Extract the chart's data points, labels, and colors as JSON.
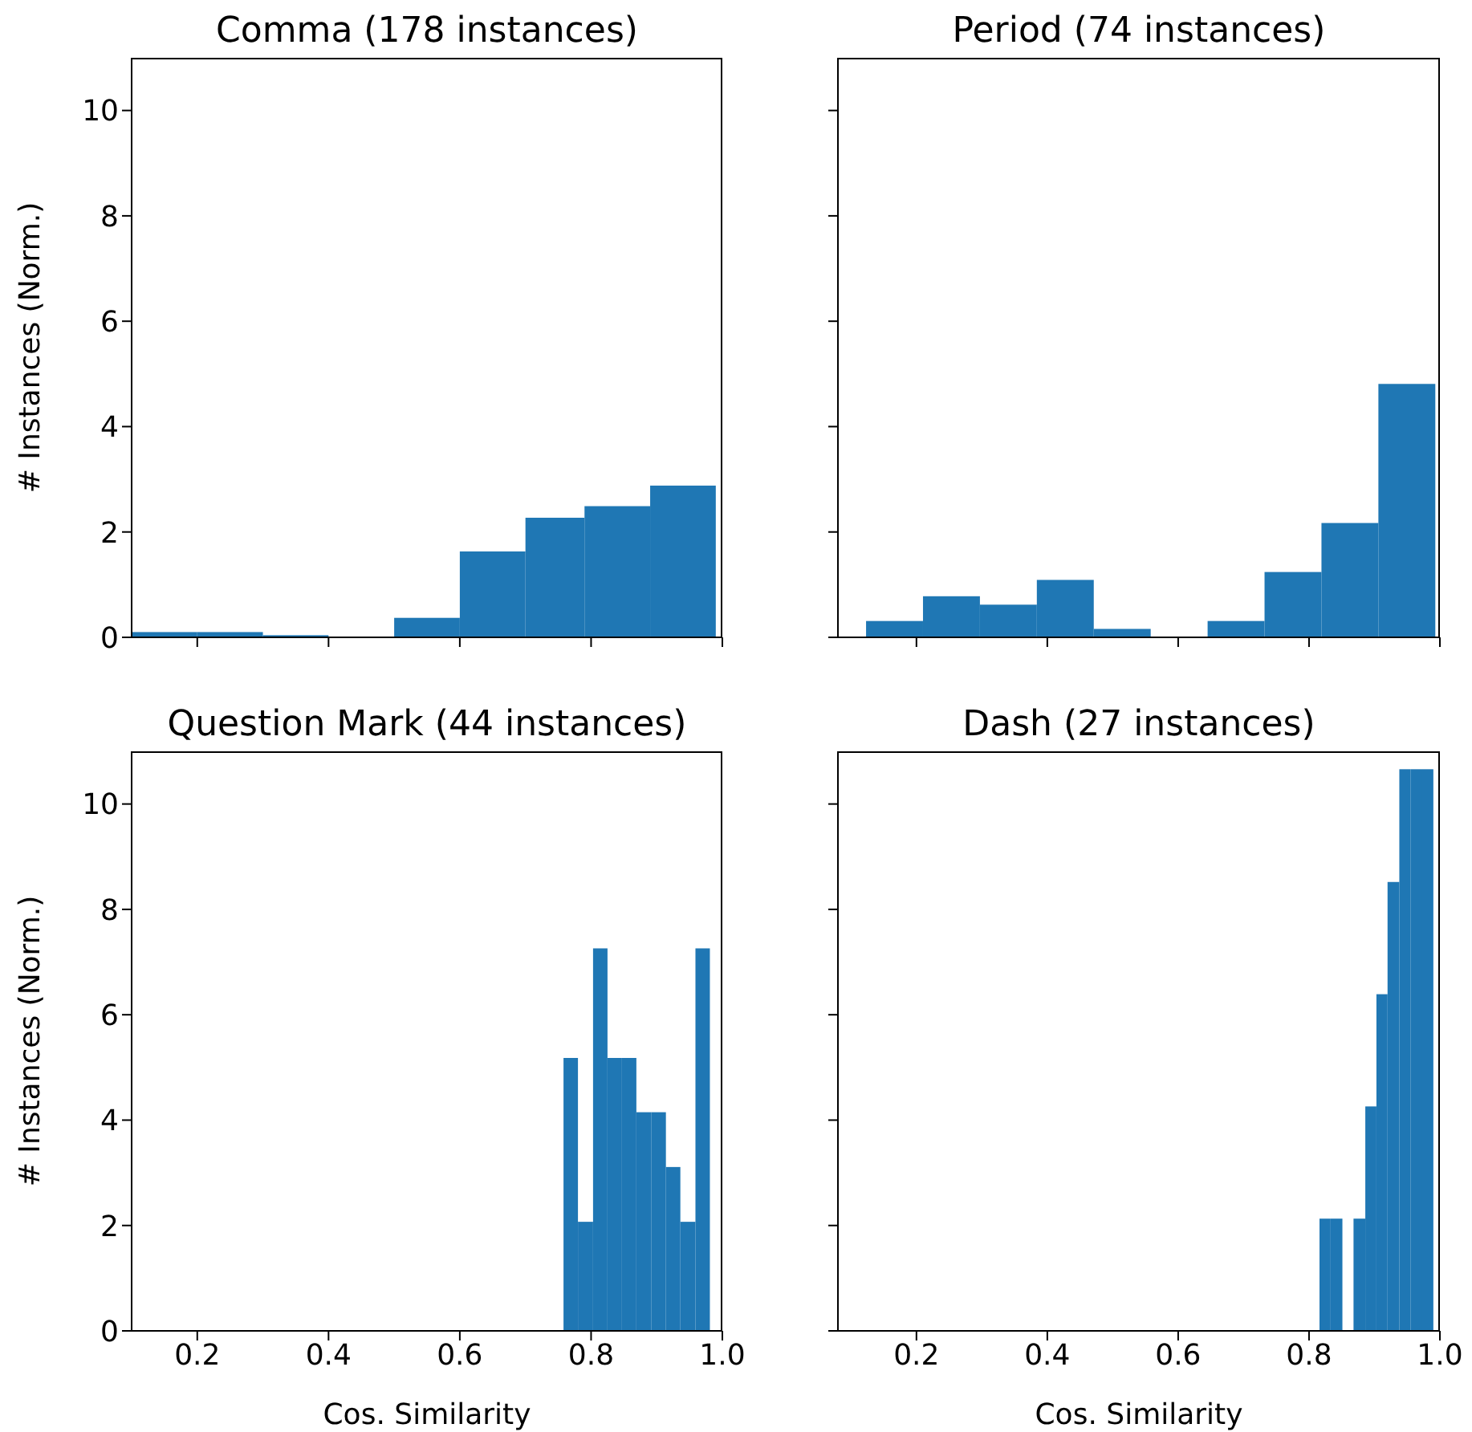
{
  "chart_data": [
    {
      "type": "histogram",
      "title": "Comma (178 instances)",
      "ylabel": "# Instances (Norm.)",
      "bins": [
        0.1,
        0.2,
        0.3,
        0.4,
        0.5,
        0.6,
        0.7,
        0.79,
        0.89,
        0.99
      ],
      "values": [
        0.1,
        0.1,
        0.04,
        0.01,
        0.37,
        1.63,
        2.27,
        2.49,
        2.88
      ],
      "color": "#1f77b4",
      "xlim": [
        0.1,
        1.0
      ],
      "xticks": [
        0.2,
        0.4,
        0.6,
        0.8,
        1.0
      ],
      "ylim": [
        0,
        11
      ],
      "yticks": [
        0,
        2,
        4,
        6,
        8,
        10
      ],
      "tick_labels": "y",
      "grid": false
    },
    {
      "type": "histogram",
      "title": "Period (74 instances)",
      "bins": [
        0.123,
        0.21,
        0.297,
        0.384,
        0.471,
        0.558,
        0.645,
        0.732,
        0.819,
        0.906,
        0.993
      ],
      "values": [
        0.31,
        0.78,
        0.62,
        1.09,
        0.16,
        0,
        0.31,
        1.24,
        2.17,
        4.81
      ],
      "color": "#1f77b4",
      "xlim": [
        0.08,
        1.0
      ],
      "xticks": [
        0.2,
        0.4,
        0.6,
        0.8,
        1.0
      ],
      "ylim": [
        0,
        11
      ],
      "yticks": [
        0,
        2,
        4,
        6,
        8,
        10
      ],
      "tick_labels": false,
      "grid": false
    },
    {
      "type": "histogram",
      "title": "Question Mark (44 instances)",
      "xlabel": "Cos. Similarity",
      "ylabel": "# Instances (Norm.)",
      "bins": [
        0.758,
        0.78,
        0.803,
        0.825,
        0.847,
        0.869,
        0.892,
        0.914,
        0.936,
        0.959,
        0.981
      ],
      "values": [
        5.18,
        2.07,
        7.26,
        5.18,
        5.18,
        4.15,
        4.15,
        3.11,
        2.07,
        7.26
      ],
      "color": "#1f77b4",
      "xlim": [
        0.1,
        1.0
      ],
      "xticks": [
        0.2,
        0.4,
        0.6,
        0.8,
        {
          "value": 1,
          "label": "1.0"
        }
      ],
      "ylim": [
        0,
        11
      ],
      "yticks": [
        0,
        2,
        4,
        6,
        8,
        10
      ],
      "grid": false
    },
    {
      "type": "histogram",
      "title": "Dash (27 instances)",
      "xlabel": "Cos. Similarity",
      "bins": [
        0.816,
        0.833,
        0.851,
        0.868,
        0.886,
        0.903,
        0.92,
        0.938,
        0.955,
        0.973,
        0.99
      ],
      "values": [
        2.13,
        2.13,
        0,
        2.13,
        4.26,
        6.39,
        8.52,
        10.66,
        10.66,
        10.66
      ],
      "color": "#1f77b4",
      "xlim": [
        0.08,
        1.0
      ],
      "xticks": [
        0.2,
        0.4,
        0.6,
        0.8,
        {
          "value": 1,
          "label": "1.0"
        }
      ],
      "ylim": [
        0,
        11
      ],
      "yticks": [
        0,
        2,
        4,
        6,
        8,
        10
      ],
      "tick_labels": "x",
      "grid": false
    }
  ]
}
